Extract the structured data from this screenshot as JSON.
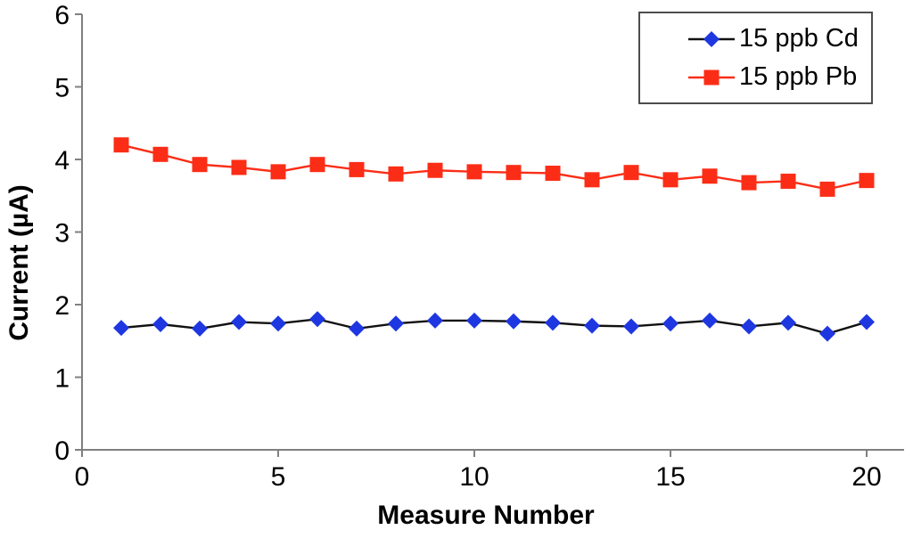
{
  "chart_data": {
    "type": "line",
    "title": "",
    "xlabel": "Measure Number",
    "ylabel": "Current (µA)",
    "xlim": [
      0,
      21
    ],
    "ylim": [
      0,
      6
    ],
    "xticks": [
      0,
      5,
      10,
      15,
      20
    ],
    "yticks": [
      0,
      1,
      2,
      3,
      4,
      5,
      6
    ],
    "grid": false,
    "legend_position": "top-right",
    "x": [
      1,
      2,
      3,
      4,
      5,
      6,
      7,
      8,
      9,
      10,
      11,
      12,
      13,
      14,
      15,
      16,
      17,
      18,
      19,
      20
    ],
    "series": [
      {
        "name": "15 ppb Cd",
        "marker": "diamond",
        "marker_color": "#1E37E1",
        "line_color": "#111111",
        "values": [
          1.68,
          1.73,
          1.67,
          1.76,
          1.74,
          1.8,
          1.67,
          1.74,
          1.78,
          1.78,
          1.77,
          1.75,
          1.71,
          1.7,
          1.74,
          1.78,
          1.7,
          1.75,
          1.6,
          1.76
        ]
      },
      {
        "name": "15 ppb Pb",
        "marker": "square",
        "marker_color": "#FC2D16",
        "line_color": "#FC2D16",
        "values": [
          4.2,
          4.07,
          3.93,
          3.89,
          3.83,
          3.93,
          3.86,
          3.8,
          3.85,
          3.83,
          3.82,
          3.81,
          3.72,
          3.82,
          3.72,
          3.77,
          3.68,
          3.7,
          3.59,
          3.71
        ]
      }
    ]
  },
  "colors": {
    "axis": "#808080",
    "text": "#000000",
    "background": "#ffffff"
  }
}
